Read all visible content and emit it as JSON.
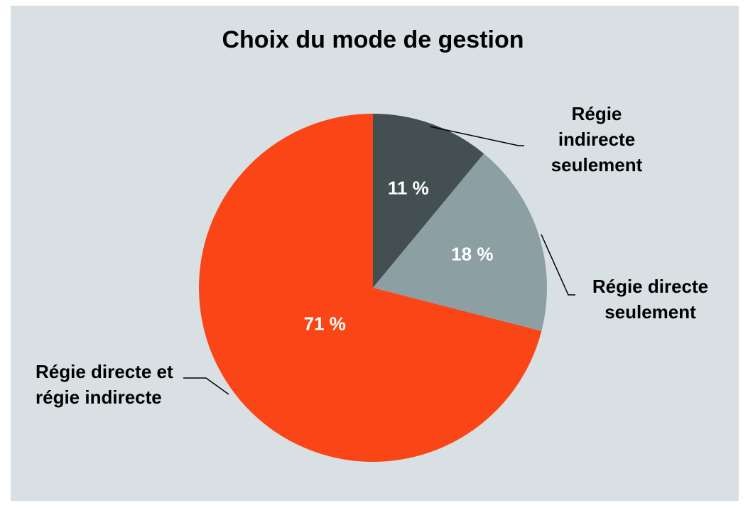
{
  "chart_data": {
    "type": "pie",
    "title": "Choix du mode de gestion",
    "categories": [
      "Régie indirecte seulement",
      "Régie directe seulement",
      "Régie directe et régie indirecte"
    ],
    "values": [
      11,
      18,
      71
    ],
    "value_labels": [
      "11 %",
      "18 %",
      "71 %"
    ],
    "colors": [
      "#444f52",
      "#8c9fa3",
      "#fa4616"
    ]
  }
}
